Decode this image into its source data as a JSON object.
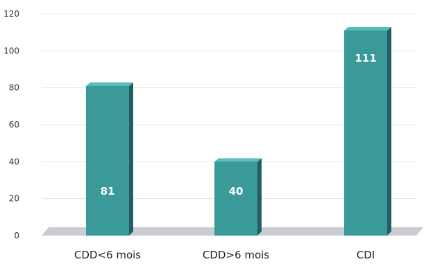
{
  "chart_data": {
    "type": "bar",
    "categories": [
      "CDD<6 mois",
      "CDD>6 mois",
      "CDI"
    ],
    "values": [
      81,
      40,
      111
    ],
    "data_labels": [
      "81",
      "40",
      "111"
    ],
    "title": "",
    "xlabel": "",
    "ylabel": "",
    "ylim": [
      0,
      120
    ],
    "yticks": [
      0,
      20,
      40,
      60,
      80,
      100,
      120
    ],
    "grid": true,
    "legend": "none",
    "colors": {
      "bar_front": "#3a9a9a",
      "bar_side": "#245f60",
      "bar_top": "#5bbcbc",
      "floor": "#c9cdd2",
      "grid": "#e6e6e6"
    }
  }
}
